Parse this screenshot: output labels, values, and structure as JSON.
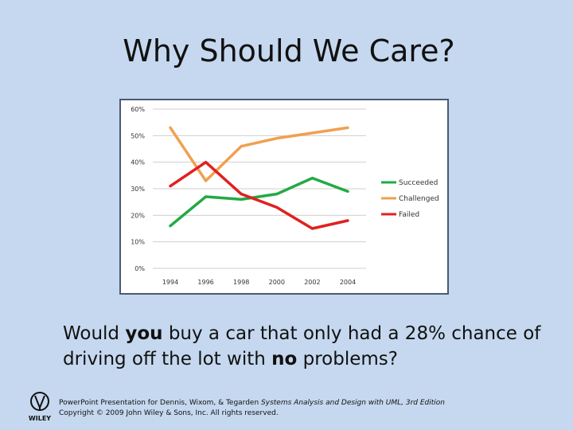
{
  "slide": {
    "title": "Why Should We Care?",
    "question": {
      "part1": "Would ",
      "emph1": "you",
      "part2": " buy a car that only had a 28% chance of driving off the lot with ",
      "emph2": "no",
      "part3": " problems?"
    },
    "footer": {
      "line1_prefix": "PowerPoint Presentation for Dennis, Wixom, & Tegarden ",
      "line1_italic": "Systems Analysis and Design with UML, 3rd Edition",
      "line2": "Copyright © 2009 John Wiley & Sons, Inc. All rights reserved."
    },
    "logo_text": "WILEY"
  },
  "chart_data": {
    "type": "line",
    "x": [
      "1994",
      "1996",
      "1998",
      "2000",
      "2002",
      "2004"
    ],
    "y_ticks": [
      "0%",
      "10%",
      "20%",
      "30%",
      "40%",
      "50%",
      "60%"
    ],
    "ylim": [
      0,
      60
    ],
    "grid": true,
    "legend_position": "right",
    "series": [
      {
        "name": "Succeeded",
        "color": "#22aa44",
        "values": [
          16,
          27,
          26,
          28,
          34,
          29
        ]
      },
      {
        "name": "Challenged",
        "color": "#f0a050",
        "values": [
          53,
          33,
          46,
          49,
          51,
          53
        ]
      },
      {
        "name": "Failed",
        "color": "#e02020",
        "values": [
          31,
          40,
          28,
          23,
          15,
          18
        ]
      }
    ]
  }
}
